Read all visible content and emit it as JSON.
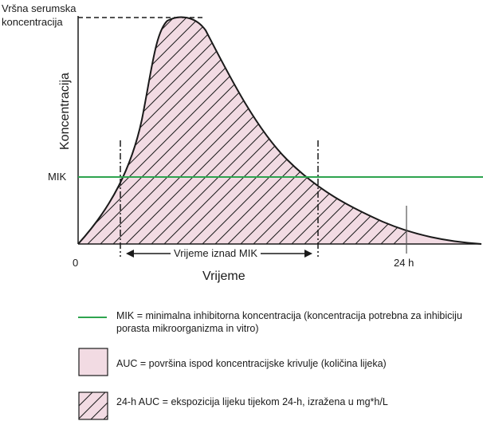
{
  "diagram": {
    "peak_label": "Vršna serumska koncentracija",
    "y_axis_title": "Koncentracija",
    "mic_label": "MIK",
    "x_origin_label": "0",
    "x_24h_label": "24 h",
    "x_axis_title": "Vrijeme",
    "time_above_mic_label": "Vrijeme iznad MIK"
  },
  "legend": {
    "mic": "MIK = minimalna inhibitorna koncentracija (koncentracija potrebna za inhibiciju porasta mikroorganizma in vitro)",
    "auc": "AUC = površina ispod koncentracijske krivulje (količina lijeka)",
    "auc24": "24-h AUC = ekspozicija lijeku tijekom 24-h, izražena u mg*h/L"
  },
  "colors": {
    "mic_line": "#2ea44f",
    "auc_fill": "#f2dbe3",
    "line": "#1a1a1a"
  }
}
